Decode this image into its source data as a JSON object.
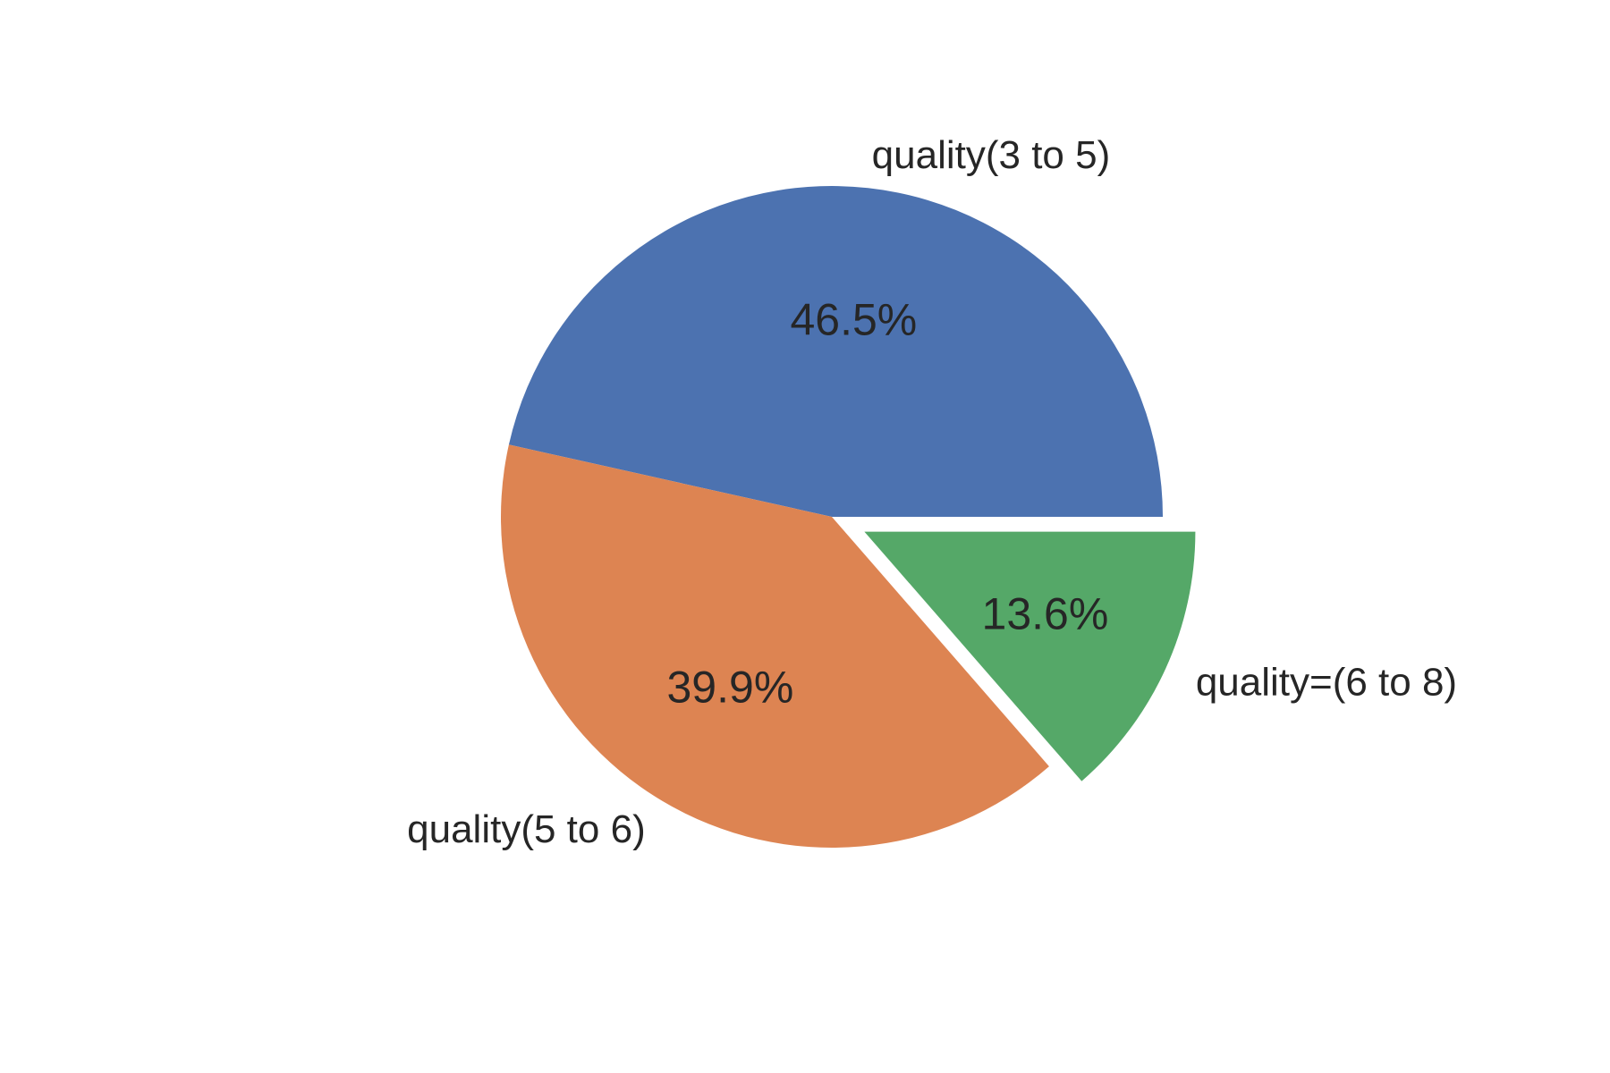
{
  "chart_data": {
    "type": "pie",
    "slices": [
      {
        "label": "quality(3 to 5)",
        "value": 46.5,
        "pct_label": "46.5%",
        "color": "#4c72b0",
        "exploded": false
      },
      {
        "label": "quality(5 to 6)",
        "value": 39.9,
        "pct_label": "39.9%",
        "color": "#dd8452",
        "exploded": false
      },
      {
        "label": "quality=(6 to 8)",
        "value": 13.6,
        "pct_label": "13.6%",
        "color": "#55a868",
        "exploded": true
      }
    ],
    "start_angle_deg": 0,
    "direction": "counterclockwise",
    "legend": "none"
  }
}
